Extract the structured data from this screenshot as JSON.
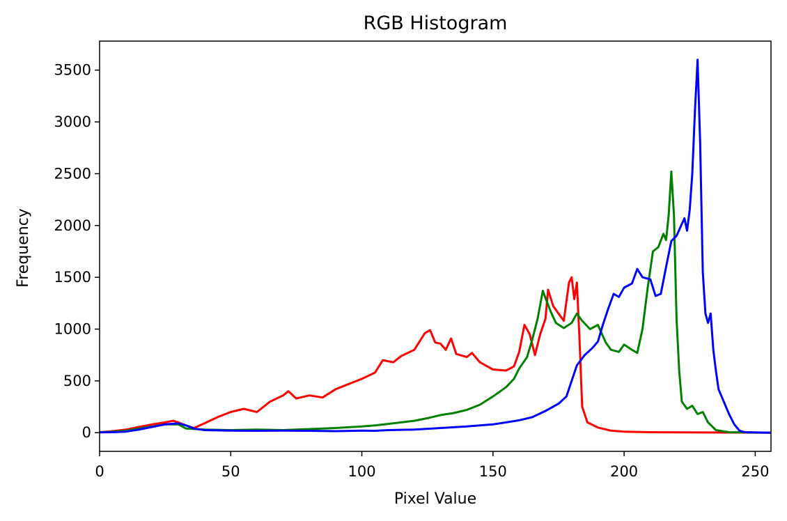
{
  "chart_data": {
    "type": "line",
    "title": "RGB Histogram",
    "xlabel": "Pixel Value",
    "ylabel": "Frequency",
    "xlim": [
      0,
      256
    ],
    "ylim": [
      -180,
      3780
    ],
    "xticks": [
      0,
      50,
      100,
      150,
      200,
      250
    ],
    "yticks": [
      0,
      500,
      1000,
      1500,
      2000,
      2500,
      3000,
      3500
    ],
    "grid": false,
    "series": [
      {
        "color": "#ff0000",
        "points": [
          [
            0,
            5
          ],
          [
            5,
            15
          ],
          [
            10,
            30
          ],
          [
            15,
            55
          ],
          [
            20,
            80
          ],
          [
            25,
            100
          ],
          [
            28,
            115
          ],
          [
            30,
            100
          ],
          [
            33,
            70
          ],
          [
            36,
            45
          ],
          [
            40,
            90
          ],
          [
            45,
            150
          ],
          [
            50,
            200
          ],
          [
            55,
            230
          ],
          [
            60,
            200
          ],
          [
            65,
            300
          ],
          [
            70,
            360
          ],
          [
            72,
            400
          ],
          [
            75,
            330
          ],
          [
            80,
            360
          ],
          [
            85,
            340
          ],
          [
            90,
            420
          ],
          [
            95,
            470
          ],
          [
            100,
            520
          ],
          [
            105,
            580
          ],
          [
            108,
            700
          ],
          [
            112,
            680
          ],
          [
            115,
            740
          ],
          [
            120,
            800
          ],
          [
            124,
            960
          ],
          [
            126,
            990
          ],
          [
            128,
            870
          ],
          [
            130,
            860
          ],
          [
            132,
            800
          ],
          [
            134,
            910
          ],
          [
            136,
            760
          ],
          [
            140,
            730
          ],
          [
            142,
            770
          ],
          [
            145,
            680
          ],
          [
            150,
            610
          ],
          [
            155,
            600
          ],
          [
            158,
            640
          ],
          [
            160,
            780
          ],
          [
            162,
            1040
          ],
          [
            164,
            950
          ],
          [
            166,
            750
          ],
          [
            168,
            950
          ],
          [
            170,
            1100
          ],
          [
            171,
            1380
          ],
          [
            173,
            1220
          ],
          [
            175,
            1150
          ],
          [
            177,
            1080
          ],
          [
            179,
            1450
          ],
          [
            180,
            1500
          ],
          [
            181,
            1290
          ],
          [
            182,
            1450
          ],
          [
            183,
            900
          ],
          [
            184,
            250
          ],
          [
            186,
            100
          ],
          [
            190,
            50
          ],
          [
            195,
            20
          ],
          [
            200,
            10
          ],
          [
            210,
            5
          ],
          [
            220,
            3
          ],
          [
            256,
            0
          ]
        ]
      },
      {
        "color": "#008000",
        "points": [
          [
            0,
            5
          ],
          [
            5,
            10
          ],
          [
            10,
            20
          ],
          [
            15,
            40
          ],
          [
            20,
            60
          ],
          [
            25,
            80
          ],
          [
            30,
            80
          ],
          [
            33,
            40
          ],
          [
            40,
            30
          ],
          [
            50,
            25
          ],
          [
            60,
            30
          ],
          [
            70,
            25
          ],
          [
            80,
            35
          ],
          [
            90,
            45
          ],
          [
            100,
            60
          ],
          [
            105,
            70
          ],
          [
            110,
            85
          ],
          [
            115,
            100
          ],
          [
            120,
            115
          ],
          [
            125,
            140
          ],
          [
            130,
            170
          ],
          [
            135,
            190
          ],
          [
            140,
            220
          ],
          [
            145,
            270
          ],
          [
            150,
            350
          ],
          [
            155,
            440
          ],
          [
            158,
            520
          ],
          [
            160,
            620
          ],
          [
            163,
            730
          ],
          [
            165,
            900
          ],
          [
            167,
            1100
          ],
          [
            169,
            1370
          ],
          [
            170,
            1300
          ],
          [
            172,
            1170
          ],
          [
            174,
            1060
          ],
          [
            177,
            1010
          ],
          [
            180,
            1060
          ],
          [
            182,
            1150
          ],
          [
            184,
            1080
          ],
          [
            187,
            1000
          ],
          [
            190,
            1040
          ],
          [
            193,
            870
          ],
          [
            195,
            800
          ],
          [
            198,
            780
          ],
          [
            200,
            850
          ],
          [
            203,
            800
          ],
          [
            205,
            770
          ],
          [
            207,
            1000
          ],
          [
            209,
            1400
          ],
          [
            211,
            1750
          ],
          [
            213,
            1790
          ],
          [
            215,
            1920
          ],
          [
            216,
            1860
          ],
          [
            217,
            2100
          ],
          [
            218,
            2520
          ],
          [
            219,
            2100
          ],
          [
            220,
            1100
          ],
          [
            221,
            600
          ],
          [
            222,
            300
          ],
          [
            224,
            230
          ],
          [
            226,
            260
          ],
          [
            228,
            180
          ],
          [
            230,
            200
          ],
          [
            232,
            100
          ],
          [
            235,
            25
          ],
          [
            240,
            5
          ],
          [
            256,
            0
          ]
        ]
      },
      {
        "color": "#0000ff",
        "points": [
          [
            0,
            3
          ],
          [
            5,
            5
          ],
          [
            10,
            10
          ],
          [
            15,
            30
          ],
          [
            20,
            55
          ],
          [
            25,
            80
          ],
          [
            30,
            90
          ],
          [
            33,
            70
          ],
          [
            36,
            40
          ],
          [
            40,
            25
          ],
          [
            50,
            20
          ],
          [
            60,
            18
          ],
          [
            70,
            20
          ],
          [
            80,
            18
          ],
          [
            90,
            15
          ],
          [
            100,
            20
          ],
          [
            105,
            18
          ],
          [
            110,
            25
          ],
          [
            120,
            30
          ],
          [
            130,
            45
          ],
          [
            140,
            60
          ],
          [
            150,
            80
          ],
          [
            155,
            100
          ],
          [
            160,
            120
          ],
          [
            165,
            150
          ],
          [
            170,
            210
          ],
          [
            175,
            280
          ],
          [
            178,
            350
          ],
          [
            180,
            500
          ],
          [
            182,
            650
          ],
          [
            185,
            750
          ],
          [
            188,
            820
          ],
          [
            190,
            880
          ],
          [
            192,
            1050
          ],
          [
            194,
            1200
          ],
          [
            196,
            1340
          ],
          [
            198,
            1310
          ],
          [
            200,
            1400
          ],
          [
            203,
            1440
          ],
          [
            205,
            1580
          ],
          [
            207,
            1500
          ],
          [
            210,
            1480
          ],
          [
            212,
            1320
          ],
          [
            214,
            1340
          ],
          [
            216,
            1600
          ],
          [
            218,
            1850
          ],
          [
            220,
            1900
          ],
          [
            223,
            2070
          ],
          [
            224,
            1950
          ],
          [
            225,
            2150
          ],
          [
            226,
            2500
          ],
          [
            227,
            3100
          ],
          [
            228,
            3600
          ],
          [
            229,
            2800
          ],
          [
            230,
            1550
          ],
          [
            231,
            1150
          ],
          [
            232,
            1060
          ],
          [
            233,
            1150
          ],
          [
            234,
            800
          ],
          [
            235,
            600
          ],
          [
            236,
            420
          ],
          [
            238,
            300
          ],
          [
            240,
            180
          ],
          [
            242,
            80
          ],
          [
            244,
            20
          ],
          [
            246,
            5
          ],
          [
            256,
            0
          ]
        ]
      }
    ]
  }
}
